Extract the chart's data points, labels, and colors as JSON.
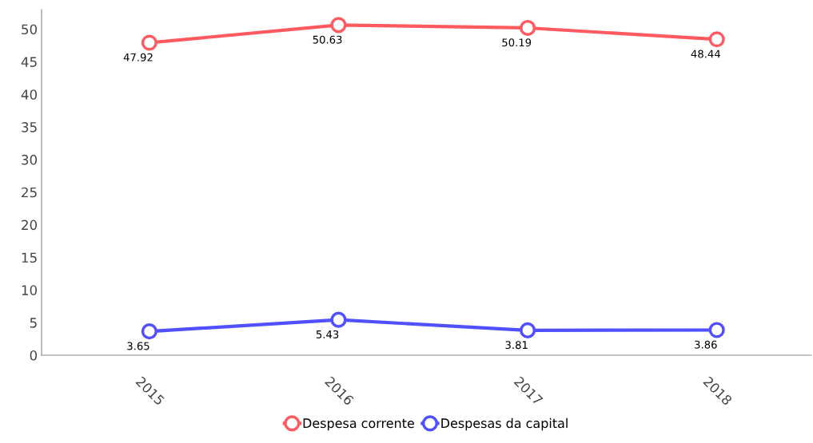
{
  "chart_data": {
    "type": "line",
    "categories": [
      "2015",
      "2016",
      "2017",
      "2018"
    ],
    "series": [
      {
        "name": "Despesa corrente",
        "color": "#ff5a5f",
        "values": [
          47.92,
          50.63,
          50.19,
          48.44
        ]
      },
      {
        "name": "Despesas da capital",
        "color": "#5050ff",
        "values": [
          3.65,
          5.43,
          3.81,
          3.86
        ]
      }
    ],
    "ylim": [
      0,
      53
    ],
    "yticks": [
      0,
      5,
      10,
      15,
      20,
      25,
      30,
      35,
      40,
      45,
      50
    ],
    "data_labels": true,
    "legend": "bottom",
    "marker": "circle",
    "line_style": "solid",
    "grid": false
  }
}
